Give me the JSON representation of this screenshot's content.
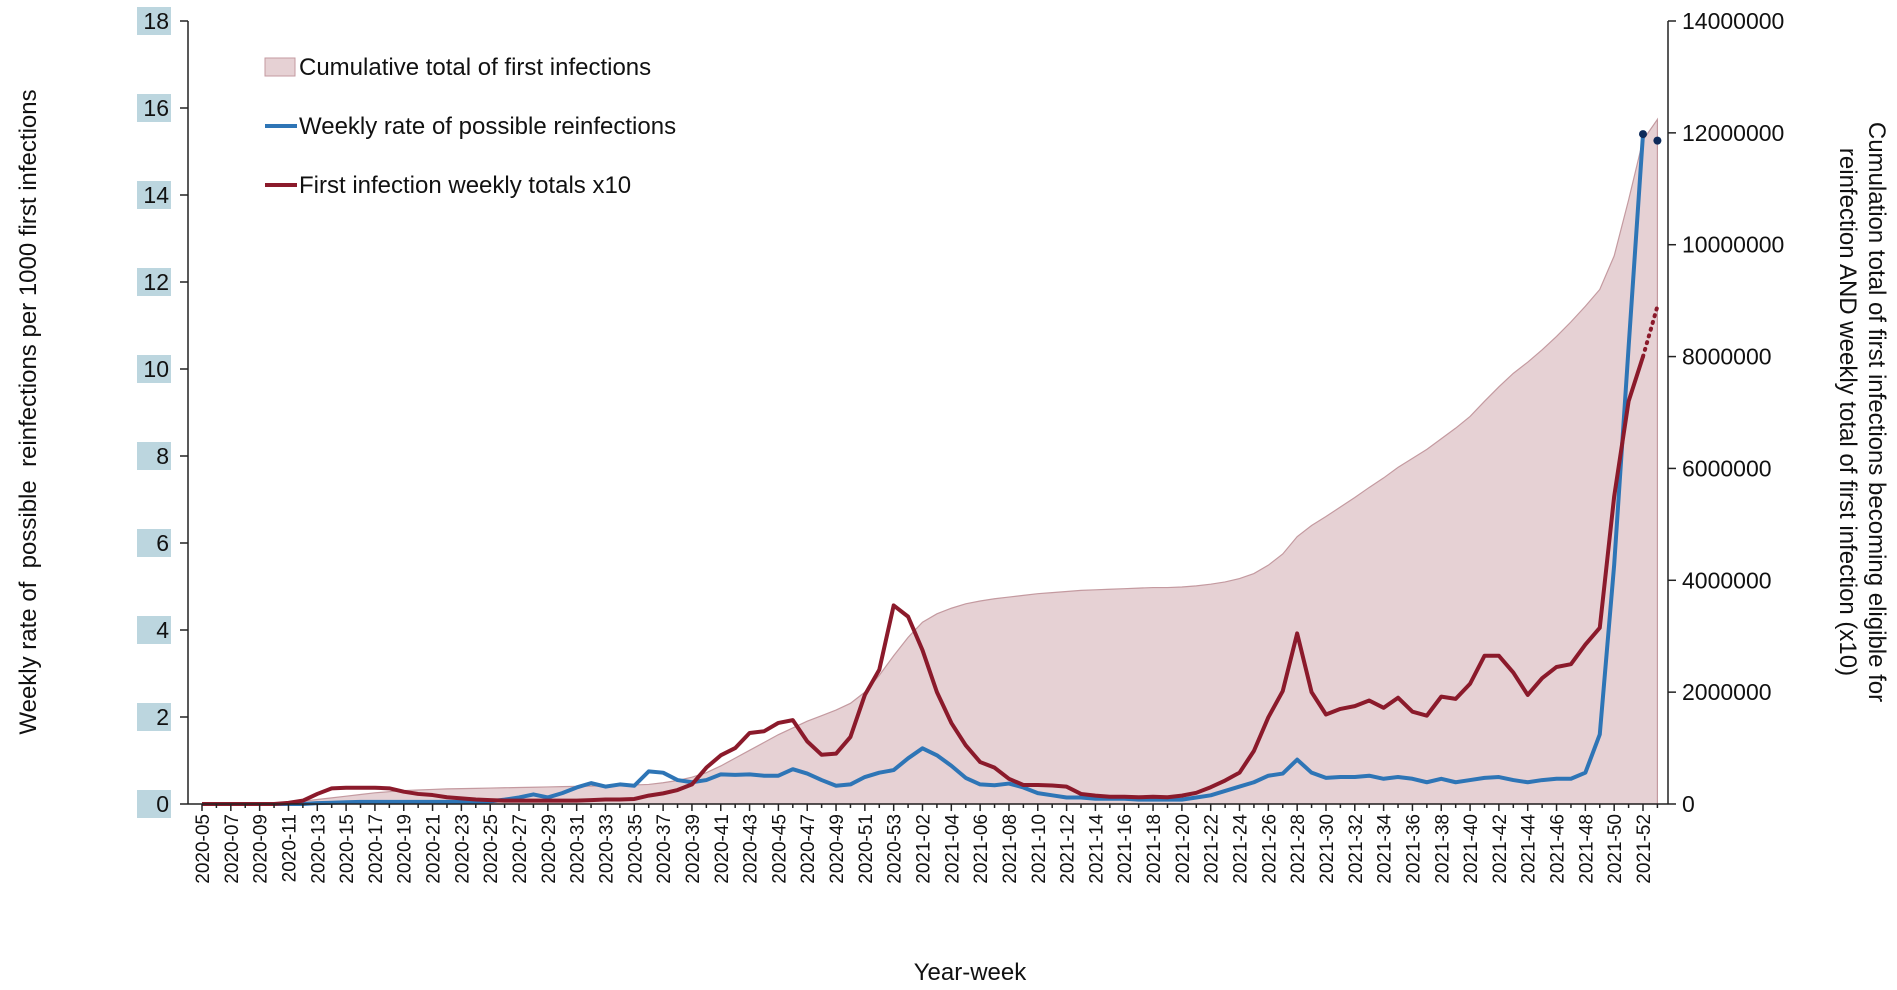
{
  "chart_data": {
    "type": "combo",
    "xlabel": "Year-week",
    "ylabel": "Weekly rate of  possible  reinfections per 1000 first infections",
    "y2label": [
      "Cumulation total of first infections becoming eligible for",
      "reinfection AND weekly total of first infection (x10)"
    ],
    "ylim": [
      0,
      18
    ],
    "yticks": [
      0,
      2,
      4,
      6,
      8,
      10,
      12,
      14,
      16,
      18
    ],
    "y2lim": [
      0,
      14000000
    ],
    "y2ticks": [
      0,
      2000000,
      4000000,
      6000000,
      8000000,
      10000000,
      12000000,
      14000000
    ],
    "legend": "top-left",
    "categories": [
      "2020-05",
      null,
      "2020-07",
      null,
      "2020-09",
      null,
      "2020-11",
      null,
      "2020-13",
      null,
      "2020-15",
      null,
      "2020-17",
      null,
      "2020-19",
      null,
      "2020-21",
      null,
      "2020-23",
      null,
      "2020-25",
      null,
      "2020-27",
      null,
      "2020-29",
      null,
      "2020-31",
      null,
      "2020-33",
      null,
      "2020-35",
      null,
      "2020-37",
      null,
      "2020-39",
      null,
      "2020-41",
      null,
      "2020-43",
      null,
      "2020-45",
      null,
      "2020-47",
      null,
      "2020-49",
      null,
      "2020-51",
      null,
      "2020-53",
      null,
      "2021-02",
      null,
      "2021-04",
      null,
      "2021-06",
      null,
      "2021-08",
      null,
      "2021-10",
      null,
      "2021-12",
      null,
      "2021-14",
      null,
      "2021-16",
      null,
      "2021-18",
      null,
      "2021-20",
      null,
      "2021-22",
      null,
      "2021-24",
      null,
      "2021-26",
      null,
      "2021-28",
      null,
      "2021-30",
      null,
      "2021-32",
      null,
      "2021-34",
      null,
      "2021-36",
      null,
      "2021-38",
      null,
      "2021-40",
      null,
      "2021-42",
      null,
      "2021-44",
      null,
      "2021-46",
      null,
      "2021-48",
      null,
      "2021-50",
      null,
      "2021-52",
      null
    ],
    "series": [
      {
        "name": "Cumulative total of first infections",
        "type": "area",
        "axis": "y2",
        "color": "#e6d1d4",
        "edge_color": "#c49aa0",
        "values": [
          0,
          2000,
          5000,
          10000,
          15000,
          20000,
          30000,
          50000,
          80000,
          110000,
          140000,
          170000,
          200000,
          220000,
          240000,
          250000,
          260000,
          270000,
          275000,
          280000,
          285000,
          290000,
          295000,
          300000,
          305000,
          310000,
          315000,
          320000,
          325000,
          330000,
          340000,
          350000,
          380000,
          420000,
          480000,
          560000,
          680000,
          820000,
          960000,
          1100000,
          1240000,
          1360000,
          1480000,
          1580000,
          1680000,
          1800000,
          2000000,
          2300000,
          2650000,
          2980000,
          3250000,
          3400000,
          3500000,
          3580000,
          3630000,
          3670000,
          3700000,
          3730000,
          3760000,
          3780000,
          3800000,
          3820000,
          3830000,
          3840000,
          3850000,
          3860000,
          3870000,
          3870000,
          3880000,
          3900000,
          3930000,
          3970000,
          4030000,
          4120000,
          4270000,
          4470000,
          4780000,
          4980000,
          5140000,
          5310000,
          5480000,
          5660000,
          5830000,
          6020000,
          6180000,
          6340000,
          6530000,
          6720000,
          6930000,
          7200000,
          7460000,
          7700000,
          7900000,
          8120000,
          8360000,
          8620000,
          8900000,
          9200000,
          9800000,
          10800000,
          11870000,
          12240000
        ]
      },
      {
        "name": "Weekly rate of possible reinfections",
        "type": "line",
        "axis": "y",
        "color": "#2e75b6",
        "marker_color": "#0d2a5a",
        "markers_from": 100,
        "values": [
          0,
          0,
          0,
          0,
          0,
          0,
          0,
          0,
          0.02,
          0.03,
          0.04,
          0.05,
          0.05,
          0.05,
          0.05,
          0.05,
          0.05,
          0.05,
          0.05,
          0.05,
          0.06,
          0.1,
          0.15,
          0.22,
          0.15,
          0.25,
          0.38,
          0.48,
          0.4,
          0.45,
          0.42,
          0.75,
          0.72,
          0.55,
          0.5,
          0.55,
          0.68,
          0.67,
          0.68,
          0.65,
          0.65,
          0.8,
          0.7,
          0.55,
          0.42,
          0.45,
          0.62,
          0.72,
          0.78,
          1.05,
          1.28,
          1.12,
          0.88,
          0.6,
          0.45,
          0.43,
          0.47,
          0.38,
          0.25,
          0.2,
          0.15,
          0.15,
          0.12,
          0.12,
          0.12,
          0.1,
          0.1,
          0.1,
          0.1,
          0.15,
          0.2,
          0.3,
          0.4,
          0.5,
          0.65,
          0.7,
          1.02,
          0.72,
          0.6,
          0.62,
          0.62,
          0.65,
          0.58,
          0.62,
          0.58,
          0.5,
          0.58,
          0.5,
          0.55,
          0.6,
          0.62,
          0.55,
          0.5,
          0.55,
          0.58,
          0.58,
          0.72,
          1.6,
          5.5,
          10.5,
          15.4,
          15.25
        ]
      },
      {
        "name": "First infection weekly totals x10",
        "type": "line",
        "axis": "y2",
        "color": "#8b1a2b",
        "dotted_from": 100,
        "values": [
          0,
          0,
          0,
          0,
          0,
          0,
          20000,
          60000,
          180000,
          280000,
          290000,
          290000,
          290000,
          280000,
          220000,
          180000,
          160000,
          120000,
          100000,
          80000,
          70000,
          60000,
          60000,
          60000,
          60000,
          60000,
          60000,
          70000,
          80000,
          80000,
          90000,
          150000,
          190000,
          250000,
          350000,
          650000,
          870000,
          1000000,
          1270000,
          1300000,
          1450000,
          1500000,
          1120000,
          880000,
          900000,
          1200000,
          1950000,
          2400000,
          3550000,
          3350000,
          2750000,
          2000000,
          1450000,
          1050000,
          750000,
          650000,
          450000,
          340000,
          340000,
          330000,
          310000,
          180000,
          150000,
          130000,
          130000,
          120000,
          130000,
          120000,
          150000,
          200000,
          300000,
          420000,
          560000,
          950000,
          1550000,
          2020000,
          3050000,
          2000000,
          1600000,
          1700000,
          1750000,
          1850000,
          1720000,
          1900000,
          1650000,
          1580000,
          1920000,
          1880000,
          2150000,
          2650000,
          2650000,
          2350000,
          1950000,
          2250000,
          2450000,
          2500000,
          2850000,
          3150000,
          5500000,
          7200000,
          8000000,
          8900000
        ]
      }
    ]
  }
}
